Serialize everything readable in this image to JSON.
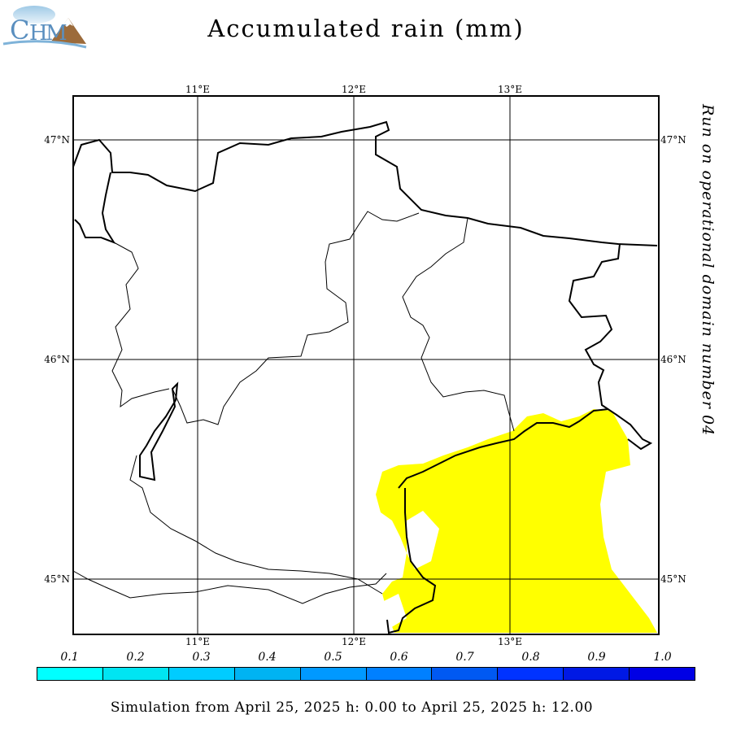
{
  "title": "Accumulated rain (mm)",
  "side_note": "Run on operational domain number 04",
  "footer": "Simulation from April 25, 2025 h: 0.00 to April 25, 2025 h: 12.00",
  "logo": {
    "icon": "chym-logo-icon"
  },
  "axes": {
    "lon_ticks": [
      "11°E",
      "12°E",
      "13°E"
    ],
    "lat_ticks": [
      "47°N",
      "46°N",
      "45°N"
    ]
  },
  "rain_fill_color": "#ffff00",
  "legend": {
    "labels": [
      "0.1",
      "0.2",
      "0.3",
      "0.4",
      "0.5",
      "0.6",
      "0.7",
      "0.8",
      "0.9",
      "1.0"
    ],
    "colors": [
      "#00ffff",
      "#00e5f2",
      "#00ccff",
      "#00b3f2",
      "#0099ff",
      "#0080ff",
      "#0059f2",
      "#0033ff",
      "#0019e5",
      "#0000e5"
    ]
  }
}
